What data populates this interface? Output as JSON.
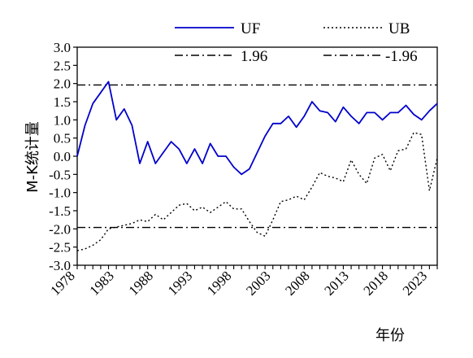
{
  "chart_data": {
    "type": "line",
    "xlabel": "年份",
    "ylabel": "M-K统计量",
    "xlim": [
      1978,
      2024
    ],
    "ylim": [
      -3.0,
      3.0
    ],
    "x_ticks": [
      1978,
      1983,
      1988,
      1993,
      1998,
      2003,
      2008,
      2013,
      2018,
      2023
    ],
    "y_ticks": [
      3.0,
      2.5,
      2.0,
      1.5,
      1.0,
      0.5,
      0.0,
      -0.5,
      -1.0,
      -1.5,
      -2.0,
      -2.5,
      -3.0
    ],
    "y_tick_labels": [
      "3.0",
      "2.5",
      "2.0",
      "1.5",
      "1.0",
      "0.5",
      "0.0",
      "-0.5",
      "-1.0",
      "-1.5",
      "-2.0",
      "-2.5",
      "-3.0"
    ],
    "legend_placement": "top",
    "grid": false,
    "x": [
      1978,
      1979,
      1980,
      1981,
      1982,
      1983,
      1984,
      1985,
      1986,
      1987,
      1988,
      1989,
      1990,
      1991,
      1992,
      1993,
      1994,
      1995,
      1996,
      1997,
      1998,
      1999,
      2000,
      2001,
      2002,
      2003,
      2004,
      2005,
      2006,
      2007,
      2008,
      2009,
      2010,
      2011,
      2012,
      2013,
      2014,
      2015,
      2016,
      2017,
      2018,
      2019,
      2020,
      2021,
      2022,
      2023,
      2024
    ],
    "series": [
      {
        "name": "UF",
        "color": "#0000cc",
        "style": "solid",
        "values": [
          0.0,
          0.85,
          1.45,
          1.75,
          2.05,
          1.0,
          1.3,
          0.85,
          -0.2,
          0.4,
          -0.2,
          0.1,
          0.4,
          0.2,
          -0.2,
          0.2,
          -0.2,
          0.35,
          0.0,
          0.0,
          -0.3,
          -0.5,
          -0.35,
          0.1,
          0.55,
          0.9,
          0.9,
          1.1,
          0.8,
          1.1,
          1.5,
          1.25,
          1.2,
          0.95,
          1.35,
          1.1,
          0.9,
          1.2,
          1.2,
          1.0,
          1.2,
          1.2,
          1.4,
          1.15,
          1.0,
          1.25,
          1.45
        ]
      },
      {
        "name": "UB",
        "color": "#000000",
        "style": "dotted",
        "values": [
          -2.6,
          -2.55,
          -2.45,
          -2.3,
          -2.0,
          -1.95,
          -1.9,
          -1.85,
          -1.75,
          -1.8,
          -1.6,
          -1.75,
          -1.55,
          -1.35,
          -1.3,
          -1.5,
          -1.4,
          -1.55,
          -1.4,
          -1.25,
          -1.45,
          -1.45,
          -1.8,
          -2.1,
          -2.2,
          -1.75,
          -1.25,
          -1.2,
          -1.1,
          -1.2,
          -0.85,
          -0.45,
          -0.55,
          -0.6,
          -0.7,
          -0.1,
          -0.5,
          -0.75,
          -0.05,
          0.05,
          -0.4,
          0.15,
          0.2,
          0.65,
          0.6,
          -0.95,
          -0.05
        ]
      }
    ],
    "reference_lines": [
      {
        "name": "1.96",
        "value": 1.96,
        "style": "dashdot",
        "color": "#000000"
      },
      {
        "name": "-1.96",
        "value": -1.96,
        "style": "dashdot",
        "color": "#000000"
      }
    ]
  }
}
